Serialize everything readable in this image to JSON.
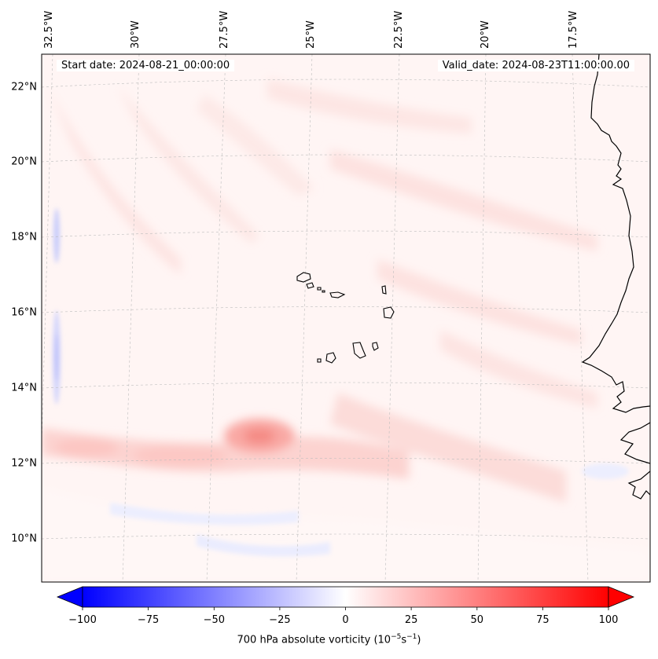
{
  "header": {
    "start_label": "Start date: 2024-08-21_00:00:00",
    "valid_label": "Valid_date: 2024-08-23T11:00:00.00"
  },
  "map": {
    "lat_ticks": [
      "22°N",
      "20°N",
      "18°N",
      "16°N",
      "14°N",
      "12°N",
      "10°N"
    ],
    "lon_ticks": [
      "32.5°W",
      "30°W",
      "27.5°W",
      "25°W",
      "22.5°W",
      "20°W",
      "17.5°W"
    ],
    "field": "700 hPa absolute vorticity",
    "features": [
      "cape-verde-islands",
      "west-africa-coastline",
      "vorticity-max-near-12.7N-25.8W"
    ]
  },
  "colorbar": {
    "ticks": [
      "−100",
      "−75",
      "−50",
      "−25",
      "0",
      "25",
      "50",
      "75",
      "100"
    ],
    "title_main": "700 hPa absolute vorticity (10",
    "title_exp1": "−5",
    "title_mid": "s",
    "title_exp2": "−1",
    "title_end": ")",
    "cmap": "bwr",
    "range": [
      -100,
      100
    ],
    "colors": {
      "neg": "#0000ff",
      "zero": "#ffffff",
      "pos": "#ff0000"
    }
  }
}
